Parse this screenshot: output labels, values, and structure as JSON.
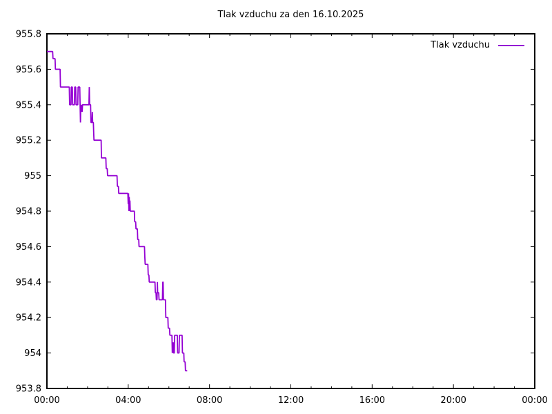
{
  "title": "Tlak vzduchu za den 16.10.2025",
  "legend": {
    "label": "Tlak vzduchu"
  },
  "colors": {
    "line": "#9400d3",
    "axis": "#000000",
    "background": "#ffffff",
    "text": "#000000"
  },
  "chart_data": {
    "type": "line",
    "title": "Tlak vzduchu za den 16.10.2025",
    "xlabel": "",
    "ylabel": "",
    "x_unit": "time of day (HH:MM)",
    "y_unit": "hPa",
    "xlim_minutes": [
      0,
      1440
    ],
    "ylim": [
      953.8,
      955.8
    ],
    "grid": false,
    "legend_position": "top-right-inside",
    "x_major_ticks": [
      {
        "minute": 0,
        "label": "00:00"
      },
      {
        "minute": 240,
        "label": "04:00"
      },
      {
        "minute": 480,
        "label": "08:00"
      },
      {
        "minute": 720,
        "label": "12:00"
      },
      {
        "minute": 960,
        "label": "16:00"
      },
      {
        "minute": 1200,
        "label": "20:00"
      },
      {
        "minute": 1440,
        "label": "00:00"
      }
    ],
    "x_minor_tick_every_minutes": 60,
    "y_ticks": [
      {
        "value": 953.8,
        "label": "953.8"
      },
      {
        "value": 954.0,
        "label": "954"
      },
      {
        "value": 954.2,
        "label": "954.2"
      },
      {
        "value": 954.4,
        "label": "954.4"
      },
      {
        "value": 954.6,
        "label": "954.6"
      },
      {
        "value": 954.8,
        "label": "954.8"
      },
      {
        "value": 955.0,
        "label": "955"
      },
      {
        "value": 955.2,
        "label": "955.2"
      },
      {
        "value": 955.4,
        "label": "955.4"
      },
      {
        "value": 955.6,
        "label": "955.6"
      },
      {
        "value": 955.8,
        "label": "955.8"
      }
    ],
    "series": [
      {
        "name": "Tlak vzduchu",
        "color": "#9400d3",
        "points_minute_hpa": [
          [
            0,
            955.7
          ],
          [
            17,
            955.7
          ],
          [
            18,
            955.66
          ],
          [
            24,
            955.66
          ],
          [
            25,
            955.6
          ],
          [
            39,
            955.6
          ],
          [
            40,
            955.5
          ],
          [
            66,
            955.5
          ],
          [
            67,
            955.4
          ],
          [
            71,
            955.4
          ],
          [
            72,
            955.5
          ],
          [
            75,
            955.5
          ],
          [
            76,
            955.4
          ],
          [
            81,
            955.4
          ],
          [
            82,
            955.5
          ],
          [
            85,
            955.5
          ],
          [
            86,
            955.4
          ],
          [
            91,
            955.4
          ],
          [
            92,
            955.5
          ],
          [
            97,
            955.5
          ],
          [
            98,
            955.4
          ],
          [
            99,
            955.3
          ],
          [
            100,
            955.4
          ],
          [
            101,
            955.36
          ],
          [
            102,
            955.4
          ],
          [
            104,
            955.36
          ],
          [
            105,
            955.4
          ],
          [
            124,
            955.4
          ],
          [
            125,
            955.5
          ],
          [
            126,
            955.4
          ],
          [
            129,
            955.4
          ],
          [
            130,
            955.3
          ],
          [
            133,
            955.3
          ],
          [
            134,
            955.36
          ],
          [
            135,
            955.3
          ],
          [
            137,
            955.3
          ],
          [
            138,
            955.24
          ],
          [
            139,
            955.2
          ],
          [
            160,
            955.2
          ],
          [
            161,
            955.1
          ],
          [
            174,
            955.1
          ],
          [
            175,
            955.04
          ],
          [
            178,
            955.04
          ],
          [
            179,
            955.0
          ],
          [
            207,
            955.0
          ],
          [
            208,
            954.94
          ],
          [
            211,
            954.94
          ],
          [
            212,
            954.9
          ],
          [
            239,
            954.9
          ],
          [
            240,
            954.84
          ],
          [
            241,
            954.9
          ],
          [
            242,
            954.8
          ],
          [
            243,
            954.88
          ],
          [
            244,
            954.8
          ],
          [
            245,
            954.86
          ],
          [
            246,
            954.8
          ],
          [
            258,
            954.8
          ],
          [
            259,
            954.74
          ],
          [
            262,
            954.74
          ],
          [
            263,
            954.7
          ],
          [
            267,
            954.7
          ],
          [
            268,
            954.64
          ],
          [
            271,
            954.64
          ],
          [
            272,
            954.6
          ],
          [
            288,
            954.6
          ],
          [
            289,
            954.54
          ],
          [
            290,
            954.5
          ],
          [
            298,
            954.5
          ],
          [
            299,
            954.44
          ],
          [
            301,
            954.44
          ],
          [
            302,
            954.4
          ],
          [
            319,
            954.4
          ],
          [
            320,
            954.34
          ],
          [
            322,
            954.34
          ],
          [
            323,
            954.3
          ],
          [
            325,
            954.3
          ],
          [
            326,
            954.4
          ],
          [
            327,
            954.34
          ],
          [
            330,
            954.34
          ],
          [
            331,
            954.3
          ],
          [
            341,
            954.3
          ],
          [
            342,
            954.4
          ],
          [
            343,
            954.4
          ],
          [
            344,
            954.3
          ],
          [
            350,
            954.3
          ],
          [
            351,
            954.2
          ],
          [
            357,
            954.2
          ],
          [
            358,
            954.14
          ],
          [
            362,
            954.14
          ],
          [
            363,
            954.1
          ],
          [
            369,
            954.1
          ],
          [
            370,
            954.0
          ],
          [
            371,
            954.06
          ],
          [
            372,
            954.0
          ],
          [
            373,
            954.06
          ],
          [
            374,
            954.0
          ],
          [
            376,
            954.0
          ],
          [
            377,
            954.1
          ],
          [
            385,
            954.1
          ],
          [
            386,
            954.0
          ],
          [
            390,
            954.0
          ],
          [
            391,
            954.1
          ],
          [
            399,
            954.1
          ],
          [
            400,
            954.0
          ],
          [
            404,
            954.0
          ],
          [
            405,
            953.95
          ],
          [
            408,
            953.95
          ],
          [
            409,
            953.9
          ],
          [
            414,
            953.9
          ]
        ]
      }
    ]
  }
}
